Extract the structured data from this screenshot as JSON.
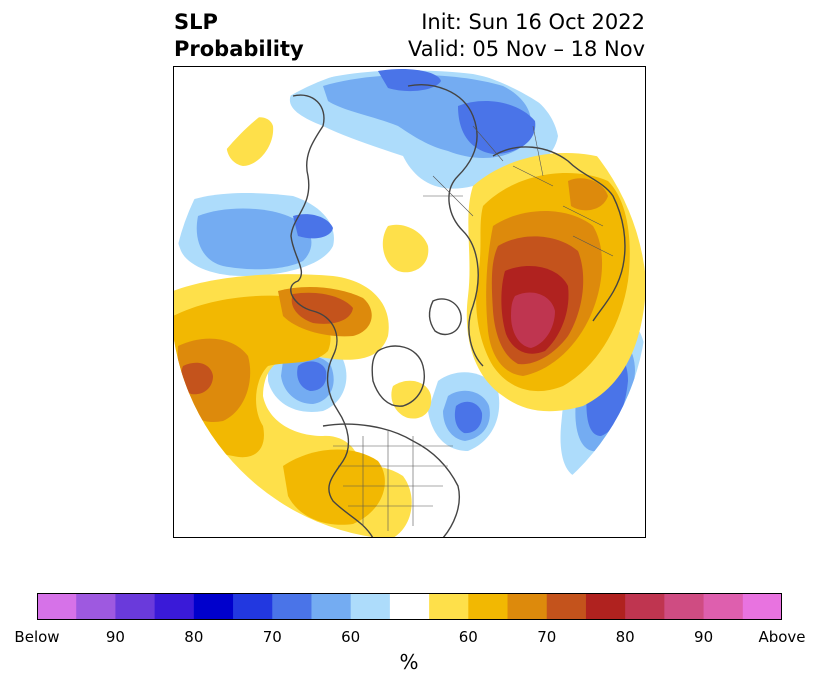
{
  "title": {
    "variable_line1": "SLP",
    "variable_line2": "Probability",
    "init": "Init: Sun 16 Oct 2022",
    "valid": "Valid: 05 Nov – 18 Nov"
  },
  "colorbar": {
    "colors": [
      "#d672e8",
      "#9e59e0",
      "#6a3adb",
      "#3a1ad8",
      "#0000cc",
      "#2238e0",
      "#4a74e8",
      "#74acf2",
      "#addcfb",
      "#ffffff",
      "#fee04a",
      "#f2b802",
      "#dd8a0c",
      "#c4531c",
      "#b0221f",
      "#bf3550",
      "#cf4c82",
      "#de5fae",
      "#e873e0"
    ],
    "tick_labels": [
      "Below",
      "90",
      "80",
      "70",
      "60",
      "60",
      "70",
      "80",
      "90",
      "Above"
    ],
    "units": "%"
  },
  "map_layers": [
    {
      "name": "blue-60",
      "color": "#addcfb"
    },
    {
      "name": "blue-65",
      "color": "#74acf2"
    },
    {
      "name": "blue-70",
      "color": "#4a74e8"
    },
    {
      "name": "yellow-60",
      "color": "#fee04a"
    },
    {
      "name": "orange-65",
      "color": "#f2b802"
    },
    {
      "name": "orange-70",
      "color": "#dd8a0c"
    },
    {
      "name": "red-75",
      "color": "#c4531c"
    },
    {
      "name": "red-80",
      "color": "#b0221f"
    },
    {
      "name": "red-85",
      "color": "#bf3550"
    }
  ]
}
